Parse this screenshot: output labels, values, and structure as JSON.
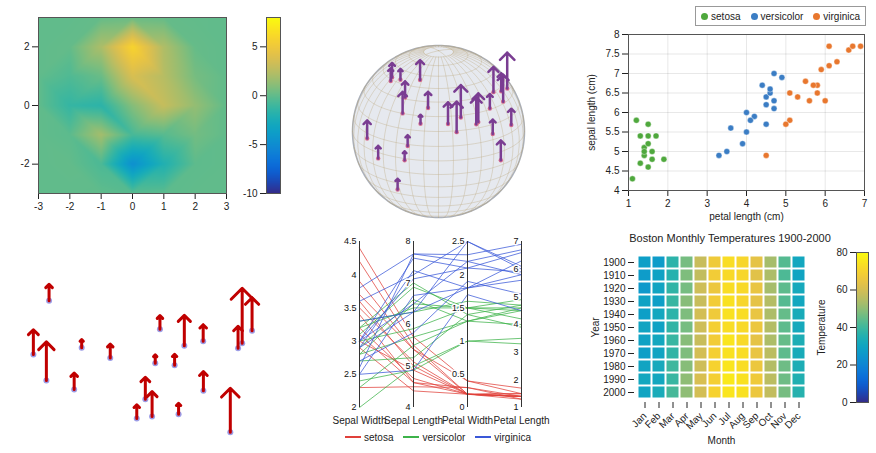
{
  "chart_data": [
    {
      "type": "surface",
      "x": [
        -3,
        -2,
        -1,
        0,
        1,
        2,
        3
      ],
      "y": [
        -3,
        -2,
        -1,
        0,
        1,
        2,
        3
      ],
      "z": [
        [
          0,
          0,
          -0.03,
          -0.24,
          -0.11,
          0,
          0
        ],
        [
          0,
          0.05,
          -0.59,
          -4.76,
          -2.1,
          -0.08,
          0
        ],
        [
          0.01,
          -0.13,
          1.85,
          -0.73,
          -0.27,
          0.5,
          0
        ],
        [
          0,
          -1.33,
          -1.65,
          0.98,
          2.94,
          1.41,
          0.02
        ],
        [
          0,
          -0.48,
          0.23,
          3.69,
          2.44,
          0.58,
          0.01
        ],
        [
          0,
          0.08,
          2.09,
          5.86,
          2.21,
          0.13,
          0
        ],
        [
          0,
          0,
          0.11,
          0.3,
          0.11,
          0.03,
          0
        ]
      ],
      "xlim": [
        -3,
        3
      ],
      "xticks": [
        -3,
        -2,
        -1,
        0,
        1,
        2,
        3
      ],
      "ylim": [
        -3,
        3
      ],
      "yticks": [
        -2,
        0,
        2
      ],
      "zlim": [
        -10,
        8
      ],
      "zticks": [
        -10,
        -5,
        0,
        5
      ]
    },
    {
      "type": "globe_spikes",
      "tick_labels": false,
      "color": "#7a3d92",
      "lon": [
        -0.1,
        2.3,
        13.4,
        37.6,
        29,
        31.2,
        3.4,
        15.3,
        36.8,
        28,
        38.7,
        46.7,
        51.4,
        67,
        77.2,
        72.9,
        88.4,
        90.4,
        100.5,
        116.4,
        121.5,
        106.8,
        121,
        139.7,
        127,
        104
      ],
      "lat": [
        51.5,
        48.9,
        52.5,
        55.8,
        41,
        30,
        6.5,
        -4.3,
        -1.3,
        -26.2,
        9,
        24.7,
        35.7,
        24.9,
        28.6,
        19.1,
        22.6,
        23.8,
        13.8,
        39.9,
        31.2,
        -6.2,
        14.6,
        35.7,
        37.6,
        30.7
      ],
      "values": [
        40,
        35,
        30,
        55,
        45,
        60,
        50,
        35,
        25,
        30,
        30,
        25,
        45,
        60,
        90,
        85,
        75,
        80,
        40,
        70,
        75,
        55,
        45,
        100,
        50,
        40
      ]
    },
    {
      "type": "scatter",
      "grid": true,
      "legend": "top right",
      "xlabel": "petal length (cm)",
      "ylabel": "sepal length (cm)",
      "xlim": [
        1,
        7
      ],
      "xticks": [
        1,
        2,
        3,
        4,
        5,
        6,
        7
      ],
      "ylim": [
        4,
        8
      ],
      "yticks": [
        4,
        4.5,
        5,
        5.5,
        6,
        6.5,
        7,
        7.5,
        8
      ],
      "series": [
        {
          "name": "setosa",
          "color": "#4fa83d",
          "x": [
            1.4,
            1.4,
            1.3,
            1.5,
            1.4,
            1.7,
            1.5,
            1.6,
            1.1,
            1.2,
            1.5,
            1.3,
            1.9,
            1.6,
            1.5
          ],
          "y": [
            5.1,
            4.9,
            4.7,
            4.6,
            5.0,
            5.4,
            5.4,
            4.8,
            4.3,
            5.8,
            5.7,
            5.4,
            4.8,
            5.0,
            5.2
          ]
        },
        {
          "name": "versicolor",
          "color": "#3b7dc4",
          "x": [
            4.7,
            4.5,
            4.9,
            4.0,
            4.6,
            4.5,
            4.7,
            3.3,
            4.6,
            3.9,
            3.5,
            4.2,
            4.0,
            4.7,
            3.6,
            4.4,
            4.1,
            4.5
          ],
          "y": [
            7.0,
            6.4,
            6.9,
            5.5,
            6.5,
            5.7,
            6.3,
            4.9,
            6.6,
            5.2,
            5.0,
            5.9,
            6.0,
            6.1,
            5.6,
            6.7,
            5.8,
            6.2
          ]
        },
        {
          "name": "virginica",
          "color": "#e8772e",
          "x": [
            6.0,
            5.1,
            5.9,
            5.6,
            5.8,
            6.6,
            4.5,
            6.3,
            5.8,
            6.1,
            5.1,
            5.3,
            5.5,
            5.0,
            6.7,
            6.9,
            5.7,
            6.1
          ],
          "y": [
            6.3,
            5.8,
            7.1,
            6.3,
            6.5,
            7.6,
            4.9,
            7.3,
            6.7,
            7.2,
            6.5,
            6.4,
            6.8,
            5.7,
            7.7,
            7.7,
            6.7,
            7.7
          ]
        }
      ]
    },
    {
      "type": "map_spikes",
      "tick_labels": false,
      "color": "#c00000",
      "lon": [
        -74,
        -118.2,
        -87.6,
        -95.4,
        -112,
        -75.2,
        -98.5,
        -96.8,
        -122.3,
        -105,
        -71,
        -84.4,
        -80.2,
        -83,
        -93.3,
        -90.2,
        -122.4,
        -111.9,
        -94.6,
        -90
      ],
      "lat": [
        40.7,
        34,
        41.9,
        29.8,
        33.4,
        40,
        29.4,
        32.8,
        47.6,
        39.7,
        42.4,
        33.7,
        25.8,
        42.3,
        45,
        38.6,
        37.8,
        40.8,
        39.1,
        30
      ],
      "values": [
        100,
        70,
        55,
        45,
        30,
        40,
        25,
        40,
        30,
        25,
        60,
        35,
        80,
        30,
        25,
        20,
        45,
        15,
        15,
        20
      ]
    },
    {
      "type": "parallel",
      "legend": "bottom",
      "dimensions": [
        "Sepal Width",
        "Sepal Length",
        "Petal Width",
        "Petal Length"
      ],
      "limits": [
        [
          2,
          4.5
        ],
        [
          4,
          8
        ],
        [
          0,
          2.5
        ],
        [
          1,
          7
        ]
      ],
      "ticks": [
        [
          2,
          2.5,
          3,
          3.5,
          4,
          4.5
        ],
        [
          4,
          5,
          6,
          7,
          8
        ],
        [
          0,
          0.5,
          1,
          1.5,
          2,
          2.5
        ],
        [
          1,
          2,
          3,
          4,
          5,
          6,
          7
        ]
      ],
      "series": [
        {
          "name": "setosa",
          "color": "#e0403a",
          "values": [
            [
              3.5,
              5.1,
              0.2,
              1.4
            ],
            [
              3.0,
              4.9,
              0.2,
              1.4
            ],
            [
              3.2,
              4.7,
              0.2,
              1.3
            ],
            [
              3.1,
              4.6,
              0.2,
              1.5
            ],
            [
              3.6,
              5.0,
              0.2,
              1.4
            ],
            [
              3.9,
              5.4,
              0.4,
              1.7
            ],
            [
              3.4,
              4.6,
              0.3,
              1.4
            ],
            [
              2.9,
              4.4,
              0.2,
              1.4
            ],
            [
              3.7,
              5.4,
              0.2,
              1.5
            ],
            [
              4.4,
              5.7,
              0.4,
              1.5
            ],
            [
              2.3,
              4.5,
              0.3,
              1.3
            ],
            [
              4.2,
              5.5,
              0.2,
              1.4
            ]
          ]
        },
        {
          "name": "versicolor",
          "color": "#3db34a",
          "values": [
            [
              3.2,
              7.0,
              1.4,
              4.7
            ],
            [
              3.2,
              6.4,
              1.5,
              4.5
            ],
            [
              3.1,
              6.9,
              1.5,
              4.9
            ],
            [
              2.3,
              5.5,
              1.3,
              4.0
            ],
            [
              2.8,
              6.5,
              1.5,
              4.6
            ],
            [
              2.8,
              5.7,
              1.3,
              4.5
            ],
            [
              3.3,
              6.3,
              1.6,
              4.7
            ],
            [
              2.4,
              4.9,
              1.0,
              3.3
            ],
            [
              2.9,
              6.6,
              1.3,
              4.6
            ],
            [
              2.7,
              5.2,
              1.4,
              3.9
            ],
            [
              2.0,
              5.0,
              1.0,
              3.5
            ],
            [
              3.0,
              5.9,
              1.5,
              4.2
            ]
          ]
        },
        {
          "name": "virginica",
          "color": "#3a58d8",
          "values": [
            [
              3.3,
              6.3,
              2.5,
              6.0
            ],
            [
              2.7,
              5.8,
              1.9,
              5.1
            ],
            [
              3.0,
              7.1,
              2.1,
              5.9
            ],
            [
              2.9,
              6.3,
              1.8,
              5.6
            ],
            [
              3.0,
              6.5,
              2.2,
              5.8
            ],
            [
              3.0,
              7.6,
              2.1,
              6.6
            ],
            [
              2.5,
              4.9,
              1.7,
              4.5
            ],
            [
              2.9,
              7.3,
              1.8,
              6.3
            ],
            [
              2.5,
              6.7,
              1.8,
              5.8
            ],
            [
              3.6,
              7.2,
              2.5,
              6.1
            ],
            [
              3.8,
              7.7,
              2.2,
              6.7
            ],
            [
              2.6,
              7.7,
              2.3,
              6.9
            ]
          ]
        }
      ]
    },
    {
      "type": "heatmap",
      "title": "Boston Monthly Temperatures 1900-2000",
      "xlabel": "Month",
      "ylabel": "Year",
      "zlabel": "Temperature",
      "categories": [
        "Jan",
        "Feb",
        "Mar",
        "Apr",
        "May",
        "Jun",
        "Jul",
        "Aug",
        "Sep",
        "Oct",
        "Nov",
        "Dec"
      ],
      "y": [
        1900,
        1910,
        1920,
        1930,
        1940,
        1950,
        1960,
        1970,
        1980,
        1990,
        2000
      ],
      "values": [
        [
          28,
          27,
          37,
          47,
          58,
          67,
          73,
          71,
          64,
          53,
          43,
          31
        ],
        [
          27,
          29,
          36,
          48,
          57,
          68,
          72,
          71,
          63,
          54,
          42,
          30
        ],
        [
          26,
          30,
          38,
          47,
          59,
          66,
          73,
          72,
          65,
          53,
          44,
          32
        ],
        [
          29,
          28,
          39,
          49,
          58,
          68,
          74,
          71,
          64,
          55,
          43,
          31
        ],
        [
          28,
          31,
          37,
          48,
          60,
          67,
          74,
          73,
          65,
          54,
          45,
          33
        ],
        [
          30,
          29,
          38,
          47,
          59,
          69,
          73,
          72,
          66,
          55,
          44,
          32
        ],
        [
          29,
          31,
          39,
          49,
          58,
          68,
          75,
          72,
          64,
          54,
          45,
          34
        ],
        [
          28,
          30,
          38,
          48,
          60,
          69,
          74,
          73,
          65,
          56,
          44,
          33
        ],
        [
          30,
          32,
          40,
          49,
          59,
          70,
          75,
          73,
          66,
          55,
          46,
          34
        ],
        [
          31,
          31,
          39,
          50,
          61,
          69,
          76,
          74,
          67,
          56,
          46,
          35
        ],
        [
          30,
          33,
          41,
          50,
          60,
          70,
          75,
          74,
          66,
          57,
          47,
          36
        ]
      ],
      "zlim": [
        0,
        80
      ],
      "zticks": [
        0,
        20,
        40,
        60,
        80
      ]
    }
  ]
}
